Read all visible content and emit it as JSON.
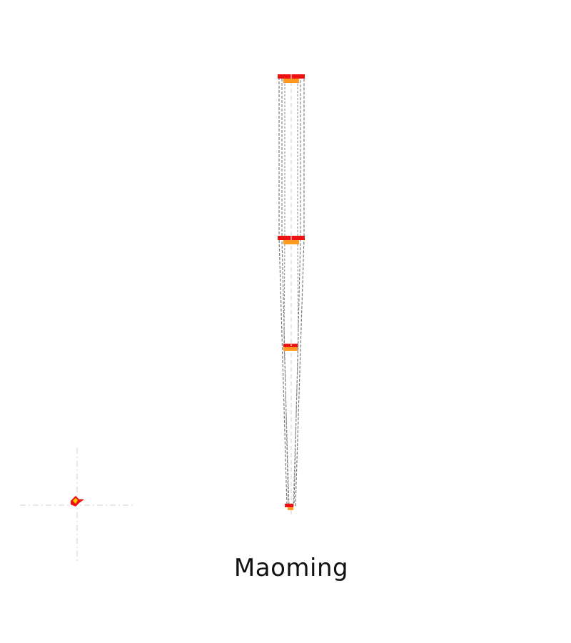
{
  "caption": "Maoming",
  "colors": {
    "outline": "#7a7a7a",
    "centerline": "#d0d0d0",
    "deck_primary": "#ee1111",
    "deck_secondary": "#ff9922",
    "compass_axis": "#d3d3d3",
    "compass_marker_primary": "#ee1111",
    "compass_marker_secondary": "#ffcc00"
  },
  "icons": {
    "compass": "wind-rose-icon"
  }
}
